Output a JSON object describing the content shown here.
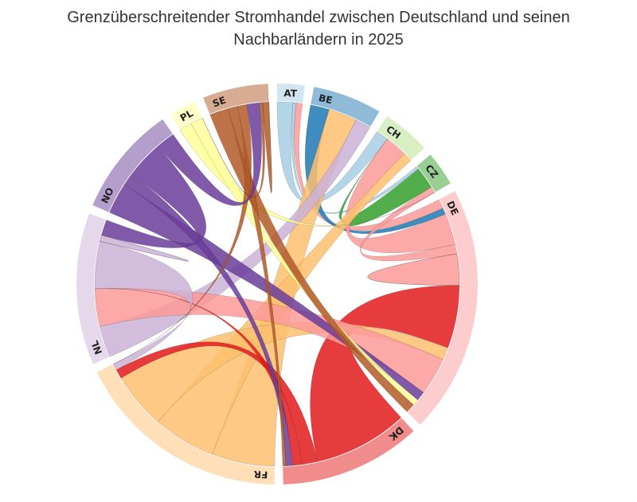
{
  "chart_data": {
    "type": "chord",
    "title_lines": [
      "Grenzüberschreitender Stromhandel zwischen Deutschland und seinen",
      "Nachbarländern in 2025"
    ],
    "groups": [
      "AT",
      "BE",
      "CH",
      "CZ",
      "DE",
      "DK",
      "FR",
      "NL",
      "NO",
      "PL",
      "SE"
    ],
    "colors": [
      "#a6cee3",
      "#1f78b4",
      "#b2df8a",
      "#33a02c",
      "#fb9a99",
      "#e31a1c",
      "#fdbf6f",
      "#cab2d6",
      "#6a3d9a",
      "#ffff99",
      "#b15928"
    ],
    "matrix": [
      [
        0,
        0,
        5,
        1,
        2,
        0,
        0,
        0,
        0,
        0,
        0
      ],
      [
        0,
        0,
        0,
        0,
        6,
        0,
        9,
        5,
        0,
        0,
        0
      ],
      [
        4,
        0,
        0,
        0,
        7,
        0,
        3,
        0,
        0,
        0,
        0
      ],
      [
        1,
        0,
        7,
        0,
        2,
        0,
        0,
        0,
        0,
        0,
        0
      ],
      [
        3,
        2,
        10,
        3,
        10,
        20,
        4,
        12,
        3,
        2,
        3
      ],
      [
        0,
        0,
        0,
        0,
        30,
        0,
        5,
        3,
        2,
        0,
        1
      ],
      [
        0,
        20,
        20,
        0,
        18,
        3,
        0,
        2,
        0,
        0,
        0
      ],
      [
        0,
        10,
        0,
        0,
        12,
        0,
        15,
        2,
        5,
        0,
        0
      ],
      [
        0,
        0,
        0,
        0,
        10,
        4,
        0,
        12,
        0,
        0,
        6
      ],
      [
        0,
        0,
        0,
        4,
        4,
        0,
        0,
        0,
        0,
        0,
        0
      ],
      [
        0,
        0,
        0,
        0,
        6,
        3,
        3,
        0,
        4,
        1,
        2
      ]
    ]
  }
}
